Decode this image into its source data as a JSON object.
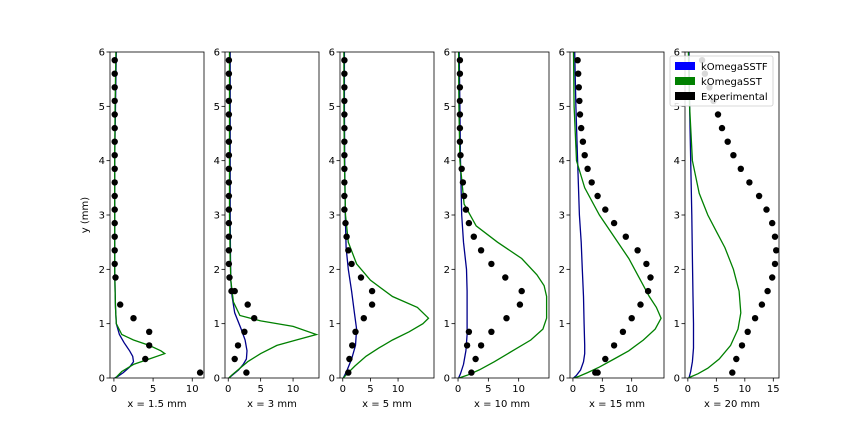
{
  "figure": {
    "ylabel": "y (mm)"
  },
  "legend": {
    "placement": "top-right",
    "entries": [
      {
        "name": "kOmegaSSTF",
        "color": "#0000ff"
      },
      {
        "name": "kOmegaSST",
        "color": "#008000"
      },
      {
        "name": "Experimental",
        "color": "#000000"
      }
    ]
  },
  "colors": {
    "kOmegaSSTF_line": "#00008b",
    "kOmegaSST_line": "#008000",
    "experimental": "#000000"
  },
  "chart_data": [
    {
      "type": "line",
      "xlabel": "x = 1.5 mm",
      "xlim": [
        -0.5,
        11.5
      ],
      "ylim": [
        0,
        6
      ],
      "xticks": [
        0,
        5,
        10
      ],
      "yticks": [
        0,
        1,
        2,
        3,
        4,
        5,
        6
      ],
      "series": [
        {
          "name": "kOmegaSSTF",
          "x": [
            0.3,
            0.2,
            0.1,
            0.1,
            0.1,
            0.15,
            0.2,
            0.3,
            0.7,
            1.3,
            2.0,
            2.4,
            2.5,
            2.0,
            1.2,
            0.5,
            0.1
          ],
          "y": [
            6,
            5,
            4,
            3,
            2,
            1.6,
            1.3,
            1.0,
            0.8,
            0.65,
            0.5,
            0.4,
            0.3,
            0.2,
            0.1,
            0.03,
            0
          ]
        },
        {
          "name": "kOmegaSST",
          "x": [
            0.25,
            0.15,
            0.1,
            0.1,
            0.1,
            0.15,
            0.2,
            0.3,
            1.0,
            2.5,
            4.5,
            6.0,
            6.5,
            4.5,
            2.5,
            1.0,
            0.2
          ],
          "y": [
            6,
            5,
            4,
            3,
            2,
            1.6,
            1.3,
            1.0,
            0.8,
            0.7,
            0.6,
            0.5,
            0.45,
            0.35,
            0.25,
            0.12,
            0
          ]
        },
        {
          "name": "Experimental",
          "x": [
            0.1,
            0.1,
            0.1,
            0.1,
            0.1,
            0.1,
            0.1,
            0.1,
            0.1,
            0.1,
            0.1,
            0.1,
            0.1,
            0.1,
            0.1,
            0.1,
            0.2,
            0.8,
            2.5,
            4.5,
            4.5,
            4.0,
            11.0
          ],
          "y": [
            5.85,
            5.6,
            5.35,
            5.1,
            4.85,
            4.6,
            4.35,
            4.1,
            3.85,
            3.6,
            3.35,
            3.1,
            2.85,
            2.6,
            2.35,
            2.1,
            1.85,
            1.35,
            1.1,
            0.85,
            0.6,
            0.35,
            0.1
          ]
        }
      ]
    },
    {
      "type": "line",
      "xlabel": "x = 3 mm",
      "xlim": [
        -0.5,
        14
      ],
      "ylim": [
        0,
        6
      ],
      "xticks": [
        0,
        5,
        10
      ],
      "yticks": [
        0,
        1,
        2,
        3,
        4,
        5,
        6
      ],
      "series": [
        {
          "name": "kOmegaSSTF",
          "x": [
            0.3,
            0.3,
            0.3,
            0.3,
            0.35,
            0.4,
            0.6,
            1.0,
            2.0,
            2.6,
            2.9,
            2.8,
            2.3,
            1.6,
            0.8,
            0.1
          ],
          "y": [
            6,
            5,
            4,
            3,
            2.2,
            1.8,
            1.5,
            1.2,
            0.9,
            0.7,
            0.5,
            0.35,
            0.25,
            0.15,
            0.07,
            0
          ]
        },
        {
          "name": "kOmegaSST",
          "x": [
            0.2,
            0.2,
            0.2,
            0.2,
            0.3,
            0.4,
            0.8,
            1.8,
            5.0,
            10.0,
            13.6,
            10.5,
            7.5,
            5.0,
            3.0,
            1.5,
            0.5,
            0.1
          ],
          "y": [
            6,
            5,
            4,
            3,
            2.2,
            1.8,
            1.4,
            1.15,
            1.05,
            0.95,
            0.8,
            0.7,
            0.6,
            0.45,
            0.3,
            0.15,
            0.05,
            0
          ]
        },
        {
          "name": "Experimental",
          "x": [
            0.1,
            0.1,
            0.1,
            0.1,
            0.1,
            0.1,
            0.1,
            0.1,
            0.1,
            0.1,
            0.1,
            0.1,
            0.1,
            0.1,
            0.1,
            0.1,
            0.2,
            0.5,
            1.0,
            3.0,
            4.0,
            2.5,
            1.5,
            1.0,
            2.8
          ],
          "y": [
            5.85,
            5.6,
            5.35,
            5.1,
            4.85,
            4.6,
            4.35,
            4.1,
            3.85,
            3.6,
            3.35,
            3.1,
            2.85,
            2.6,
            2.35,
            2.1,
            1.85,
            1.6,
            1.6,
            1.35,
            1.1,
            0.85,
            0.6,
            0.35,
            0.1
          ]
        }
      ]
    },
    {
      "type": "line",
      "xlabel": "x = 5 mm",
      "xlim": [
        -0.5,
        16.5
      ],
      "ylim": [
        0,
        6
      ],
      "xticks": [
        0,
        5,
        10
      ],
      "yticks": [
        0,
        1,
        2,
        3,
        4,
        5,
        6
      ],
      "series": [
        {
          "name": "kOmegaSSTF",
          "x": [
            0.3,
            0.3,
            0.35,
            0.45,
            0.6,
            1.0,
            1.6,
            2.1,
            2.5,
            2.3,
            1.6,
            0.8,
            0.1
          ],
          "y": [
            6,
            5,
            4,
            3,
            2.4,
            2.0,
            1.6,
            1.2,
            0.9,
            0.6,
            0.35,
            0.15,
            0
          ]
        },
        {
          "name": "kOmegaSST",
          "x": [
            0.2,
            0.2,
            0.3,
            0.5,
            1.0,
            2.5,
            5.0,
            9.0,
            13.5,
            15.5,
            14.5,
            12.0,
            9.0,
            6.5,
            4.2,
            2.2,
            0.8,
            0.1
          ],
          "y": [
            6,
            5,
            4,
            3,
            2.5,
            2.1,
            1.8,
            1.5,
            1.3,
            1.1,
            1.0,
            0.85,
            0.7,
            0.55,
            0.4,
            0.22,
            0.08,
            0
          ]
        },
        {
          "name": "Experimental",
          "x": [
            0.3,
            0.3,
            0.3,
            0.3,
            0.3,
            0.3,
            0.3,
            0.3,
            0.3,
            0.3,
            0.3,
            0.3,
            0.5,
            0.7,
            1.0,
            1.6,
            3.3,
            5.3,
            5.3,
            3.8,
            2.3,
            1.7,
            1.2,
            1.0
          ],
          "y": [
            5.85,
            5.6,
            5.35,
            5.1,
            4.85,
            4.6,
            4.35,
            4.1,
            3.85,
            3.6,
            3.35,
            3.1,
            2.85,
            2.6,
            2.35,
            2.1,
            1.85,
            1.6,
            1.35,
            1.1,
            0.85,
            0.6,
            0.35,
            0.1
          ]
        }
      ]
    },
    {
      "type": "line",
      "xlabel": "x = 10 mm",
      "xlim": [
        -0.5,
        15
      ],
      "ylim": [
        0,
        6
      ],
      "xticks": [
        0,
        5,
        10
      ],
      "yticks": [
        0,
        1,
        2,
        3,
        4,
        5,
        6
      ],
      "series": [
        {
          "name": "kOmegaSSTF",
          "x": [
            0.2,
            0.3,
            0.4,
            0.6,
            0.9,
            1.2,
            1.4,
            1.5,
            1.5,
            1.5,
            1.3,
            0.9,
            0.4,
            0.1
          ],
          "y": [
            6,
            5,
            4,
            3,
            2.5,
            2.2,
            2.0,
            1.6,
            1.2,
            0.8,
            0.5,
            0.25,
            0.08,
            0
          ]
        },
        {
          "name": "kOmegaSST",
          "x": [
            0.1,
            0.15,
            0.3,
            1.0,
            3.0,
            6.5,
            10.5,
            13.0,
            14.2,
            14.6,
            14.6,
            14.0,
            12.0,
            9.0,
            6.0,
            3.5,
            1.5,
            0.4,
            0.1
          ],
          "y": [
            6,
            5,
            4,
            3.2,
            2.8,
            2.5,
            2.2,
            1.9,
            1.7,
            1.5,
            1.1,
            0.9,
            0.7,
            0.5,
            0.3,
            0.15,
            0.05,
            0.01,
            0
          ]
        },
        {
          "name": "Experimental",
          "x": [
            0.3,
            0.3,
            0.3,
            0.3,
            0.3,
            0.3,
            0.3,
            0.4,
            0.6,
            0.8,
            1.0,
            1.3,
            1.8,
            2.6,
            3.8,
            5.5,
            7.8,
            10.5,
            10.2,
            8.0,
            5.5,
            3.8,
            2.9,
            2.2,
            1.8,
            1.5
          ],
          "y": [
            5.85,
            5.6,
            5.35,
            5.1,
            4.85,
            4.6,
            4.35,
            4.1,
            3.85,
            3.6,
            3.35,
            3.1,
            2.85,
            2.6,
            2.35,
            2.1,
            1.85,
            1.6,
            1.35,
            1.1,
            0.85,
            0.6,
            0.35,
            0.1,
            0.85,
            0.6
          ]
        }
      ]
    },
    {
      "type": "line",
      "xlabel": "x = 15 mm",
      "xlim": [
        -0.5,
        15.5
      ],
      "ylim": [
        0,
        6
      ],
      "xticks": [
        0,
        5,
        10
      ],
      "yticks": [
        0,
        1,
        2,
        3,
        4,
        5,
        6
      ],
      "series": [
        {
          "name": "kOmegaSSTF",
          "x": [
            0.3,
            0.5,
            0.8,
            1.1,
            1.4,
            1.6,
            1.8,
            1.9,
            2.0,
            2.0,
            1.8,
            1.3,
            0.6,
            0.1
          ],
          "y": [
            6,
            5,
            4,
            3,
            2.5,
            2.0,
            1.5,
            1.0,
            0.6,
            0.45,
            0.3,
            0.15,
            0.05,
            0
          ]
        },
        {
          "name": "kOmegaSST",
          "x": [
            0.1,
            0.2,
            0.6,
            2.0,
            4.5,
            7.0,
            9.5,
            11.5,
            13.0,
            14.2,
            15.0,
            14.0,
            12.0,
            9.5,
            7.0,
            4.5,
            2.5,
            1.0,
            0.2
          ],
          "y": [
            6,
            5,
            4,
            3.5,
            3.0,
            2.6,
            2.2,
            1.8,
            1.5,
            1.3,
            1.1,
            0.9,
            0.7,
            0.5,
            0.35,
            0.2,
            0.1,
            0.03,
            0
          ]
        },
        {
          "name": "Experimental",
          "x": [
            0.8,
            0.9,
            1.0,
            1.1,
            1.2,
            1.4,
            1.7,
            2.0,
            2.5,
            3.2,
            4.2,
            5.5,
            7.0,
            9.0,
            11.0,
            12.5,
            13.2,
            12.8,
            11.5,
            10.0,
            8.5,
            7.0,
            5.5,
            4.2,
            3.8
          ],
          "y": [
            5.85,
            5.6,
            5.35,
            5.1,
            4.85,
            4.6,
            4.35,
            4.1,
            3.85,
            3.6,
            3.35,
            3.1,
            2.85,
            2.6,
            2.35,
            2.1,
            1.85,
            1.6,
            1.35,
            1.1,
            0.85,
            0.6,
            0.35,
            0.1,
            0.1
          ]
        }
      ]
    },
    {
      "type": "line",
      "xlabel": "x = 20 mm",
      "xlim": [
        -0.5,
        16
      ],
      "ylim": [
        0,
        6
      ],
      "xticks": [
        0,
        5,
        10,
        15
      ],
      "yticks": [
        0,
        1,
        2,
        3,
        4,
        5,
        6
      ],
      "series": [
        {
          "name": "kOmegaSSTF",
          "x": [
            0.2,
            0.3,
            0.5,
            0.7,
            0.8,
            0.9,
            1.0,
            1.0,
            0.8,
            0.5,
            0.2
          ],
          "y": [
            6,
            5,
            4,
            3,
            2.2,
            1.5,
            1.0,
            0.55,
            0.3,
            0.12,
            0
          ]
        },
        {
          "name": "kOmegaSST",
          "x": [
            0.1,
            0.3,
            0.8,
            2.0,
            3.5,
            5.0,
            6.5,
            8.0,
            9.0,
            9.3,
            8.8,
            7.5,
            5.5,
            3.5,
            1.8,
            0.5,
            0.1
          ],
          "y": [
            6,
            5,
            4,
            3.4,
            3.0,
            2.7,
            2.4,
            2.0,
            1.6,
            1.2,
            0.9,
            0.6,
            0.35,
            0.18,
            0.08,
            0.02,
            0
          ]
        },
        {
          "name": "Experimental",
          "x": [
            2.5,
            3.0,
            3.8,
            4.5,
            5.3,
            6.0,
            7.0,
            8.0,
            9.3,
            10.8,
            12.5,
            13.8,
            14.8,
            15.3,
            15.5,
            15.3,
            14.8,
            14.0,
            13.0,
            11.8,
            10.5,
            9.5,
            8.5,
            7.8
          ],
          "y": [
            5.85,
            5.6,
            5.35,
            5.1,
            4.85,
            4.6,
            4.35,
            4.1,
            3.85,
            3.6,
            3.35,
            3.1,
            2.85,
            2.6,
            2.35,
            2.1,
            1.85,
            1.6,
            1.35,
            1.1,
            0.85,
            0.6,
            0.35,
            0.1
          ]
        }
      ]
    }
  ]
}
